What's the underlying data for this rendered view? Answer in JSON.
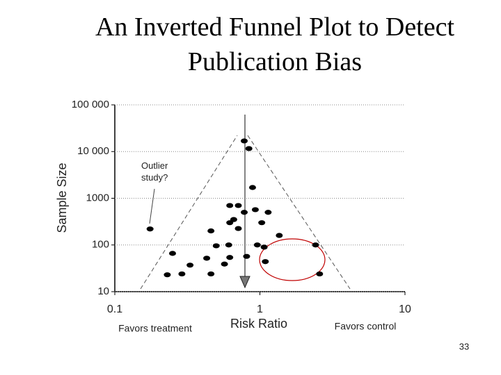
{
  "chart_data": {
    "type": "scatter",
    "title": "An Inverted Funnel Plot to Detect Publication Bias",
    "x_label": "Risk Ratio",
    "y_label": "Sample Size",
    "annotations": [
      "Favors treatment",
      "Favors control",
      "Outlier study?"
    ],
    "page_number": "33",
    "x_scale": "log",
    "y_scale": "log",
    "grid": true,
    "color": "#000000",
    "xlim": [
      0.1,
      10
    ],
    "xticks": [
      0.1,
      1,
      10
    ],
    "ylim": [
      10,
      100000
    ],
    "yticks": [
      10,
      100,
      1000,
      {
        "value": 10000,
        "label": "10 000"
      },
      {
        "value": 100000,
        "label": "100 000"
      }
    ],
    "x": [
      0.78,
      0.84,
      0.89,
      0.62,
      0.71,
      0.93,
      0.78,
      1.14,
      0.66,
      0.62,
      1.03,
      0.71,
      0.175,
      0.46,
      1.36,
      0.61,
      0.5,
      0.96,
      1.07,
      2.42,
      0.25,
      0.43,
      0.81,
      0.62,
      1.09,
      0.57,
      0.33,
      0.46,
      0.29,
      0.23,
      2.58
    ],
    "values": [
      16900,
      11600,
      1700,
      700,
      700,
      570,
      500,
      500,
      350,
      300,
      300,
      225,
      220,
      200,
      160,
      100,
      96,
      100,
      90,
      100,
      66,
      52,
      57,
      54,
      44,
      39,
      37,
      24,
      24,
      23,
      24
    ]
  }
}
